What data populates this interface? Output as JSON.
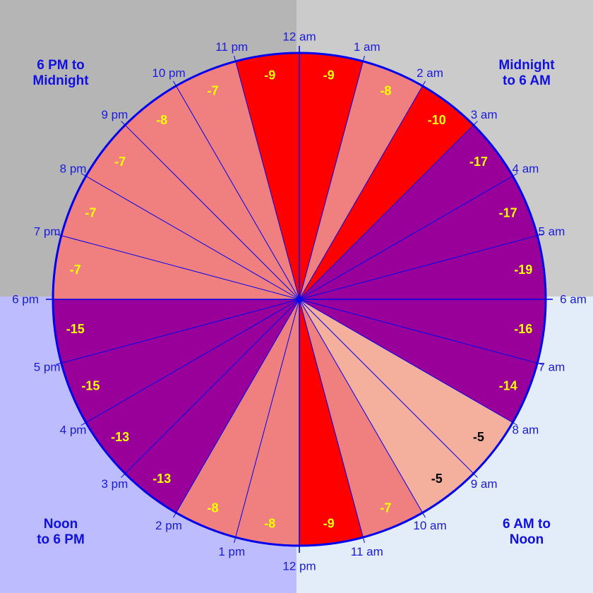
{
  "quadrants": {
    "top_left": {
      "line1": "6 PM to",
      "line2": "Midnight",
      "background": "#b5b5b5"
    },
    "top_right": {
      "line1": "Midnight",
      "line2": "to 6 AM",
      "background": "#cbcbcb"
    },
    "bottom_left": {
      "line1": "Noon",
      "line2": "to 6 PM",
      "background": "#bcbcff"
    },
    "bottom_right": {
      "line1": "6 AM to",
      "line2": "Noon",
      "background": "#e3ecf9"
    }
  },
  "chart_data": {
    "type": "pie",
    "hours": [
      "12 am",
      "1 am",
      "2 am",
      "3 am",
      "4 am",
      "5 am",
      "6 am",
      "7 am",
      "8 am",
      "9 am",
      "10 am",
      "11 am",
      "12 pm",
      "1 pm",
      "2 pm",
      "3 pm",
      "4 pm",
      "5 pm",
      "6 pm",
      "7 pm",
      "8 pm",
      "9 pm",
      "10 pm",
      "11 pm"
    ],
    "values": [
      -9,
      -8,
      -10,
      -17,
      -17,
      -19,
      -16,
      -14,
      -5,
      -5,
      -7,
      -9,
      -8,
      -8,
      -13,
      -13,
      -15,
      -15,
      -7,
      -7,
      -7,
      -8,
      -7,
      -9
    ],
    "colors": {
      "warm": "#ff0000",
      "mild": "#f08080",
      "light": "#f4b09c",
      "cold": "#990099",
      "outline": "#0000ee",
      "value_label": "#ffff00",
      "value_label_light": "#000000"
    }
  }
}
